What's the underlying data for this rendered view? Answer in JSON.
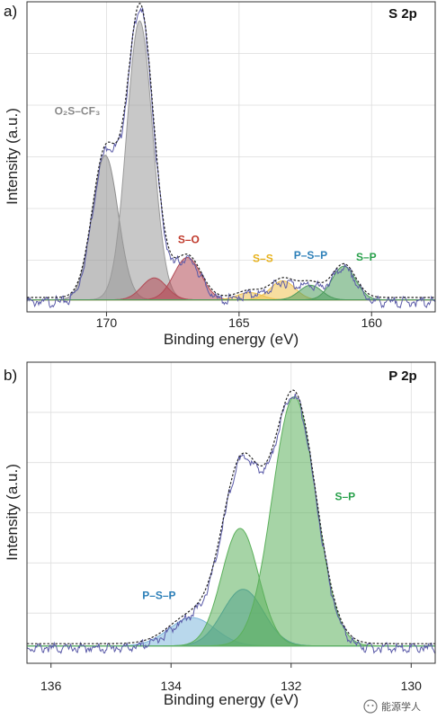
{
  "chart_data": [
    {
      "type": "area",
      "panel_label": "a)",
      "title": "S 2p",
      "xlabel": "Binding energy (eV)",
      "ylabel": "Intensity (a.u.)",
      "xlim": [
        173,
        157.6
      ],
      "ylim": [
        0,
        100
      ],
      "x_reversed": true,
      "xticks": [
        170,
        165,
        160
      ],
      "grid": true,
      "baseline": 3.5,
      "peaks": [
        {
          "center": 170.05,
          "height": 49.5,
          "fwhm": 1.15,
          "color": "#8e8e8e"
        },
        {
          "center": 168.75,
          "height": 95.5,
          "fwhm": 1.15,
          "color": "#9a9a9a"
        },
        {
          "center": 168.2,
          "height": 7.5,
          "fwhm": 1.1,
          "color": "#b24a55"
        },
        {
          "center": 166.95,
          "height": 14.5,
          "fwhm": 1.2,
          "color": "#b24a55"
        },
        {
          "center": 164.6,
          "height": 2.5,
          "fwhm": 1.1,
          "color": "#f0c250"
        },
        {
          "center": 163.35,
          "height": 6.5,
          "fwhm": 1.1,
          "color": "#f0c250"
        },
        {
          "center": 162.3,
          "height": 5.0,
          "fwhm": 1.0,
          "color": "#4c9c5c"
        },
        {
          "center": 161.05,
          "height": 11.5,
          "fwhm": 1.05,
          "color": "#4c9c5c"
        }
      ],
      "annotations": [
        {
          "text": "O₂S–CF₃",
          "x": 171.1,
          "y": 67,
          "color": "#8a8a8a"
        },
        {
          "text": "S–O",
          "x": 166.9,
          "y": 23,
          "color": "#c0392b"
        },
        {
          "text": "S–S",
          "x": 164.1,
          "y": 16.5,
          "color": "#e8b21c"
        },
        {
          "text": "P–S–P",
          "x": 162.3,
          "y": 17.5,
          "color": "#2c7fb8"
        },
        {
          "text": "S–P",
          "x": 160.2,
          "y": 17,
          "color": "#27a04a"
        }
      ]
    },
    {
      "type": "area",
      "panel_label": "b)",
      "title": "P 2p",
      "xlabel": "Binding energy (eV)",
      "ylabel": "Intensity (a.u.)",
      "xlim": [
        136.4,
        129.6
      ],
      "ylim": [
        0,
        100
      ],
      "x_reversed": true,
      "xticks": [
        136,
        134,
        132,
        130
      ],
      "grid": true,
      "baseline": 5.5,
      "peaks": [
        {
          "center": 133.65,
          "height": 10.0,
          "fwhm": 0.9,
          "color": "#80b8dc"
        },
        {
          "center": 132.8,
          "height": 20.0,
          "fwhm": 0.8,
          "color": "#4c96c8"
        },
        {
          "center": 132.85,
          "height": 41.5,
          "fwhm": 0.72,
          "color": "#5cb05c"
        },
        {
          "center": 131.95,
          "height": 88.0,
          "fwhm": 0.85,
          "color": "#5cb05c"
        }
      ],
      "annotations": [
        {
          "text": "P–S–P",
          "x": 134.2,
          "y": 22,
          "color": "#2c7fb8"
        },
        {
          "text": "S–P",
          "x": 131.1,
          "y": 57,
          "color": "#27a04a"
        }
      ]
    }
  ],
  "watermark": "能源学人"
}
